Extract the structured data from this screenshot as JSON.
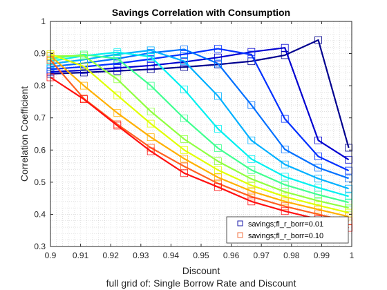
{
  "chart_data": {
    "type": "line",
    "title": "Savings Correlation with Consumption",
    "xlabel": "Discount",
    "ylabel": "Correlation Coefficient",
    "subtitle": "full grid of: Single Borrow Rate and Discount",
    "xlim": [
      0.9,
      1.0
    ],
    "ylim": [
      0.3,
      1.0
    ],
    "x_ticks": [
      "0.9",
      "0.91",
      "0.92",
      "0.93",
      "0.94",
      "0.95",
      "0.96",
      "0.97",
      "0.98",
      "0.99",
      "1"
    ],
    "y_ticks": [
      "0.3",
      "0.4",
      "0.5",
      "0.6",
      "0.7",
      "0.8",
      "0.9",
      "1"
    ],
    "grid": "minor dotted",
    "legend_position": "bottom-right",
    "legend": [
      {
        "label": "savings;fl_r_borr=0.01",
        "color": "#1a1aa8"
      },
      {
        "label": "savings;fl_r_borr=0.10",
        "color": "#f07040"
      }
    ],
    "marker_x": [
      0.9,
      0.9111,
      0.9222,
      0.9333,
      0.9444,
      0.9556,
      0.9667,
      0.9778,
      0.9889,
      0.999
    ],
    "series": [
      {
        "color": "#00008f",
        "values": [
          0.837,
          0.841,
          0.846,
          0.851,
          0.858,
          0.866,
          0.876,
          0.895,
          0.942,
          0.607
        ]
      },
      {
        "color": "#0000d0",
        "values": [
          0.843,
          0.848,
          0.855,
          0.863,
          0.874,
          0.888,
          0.905,
          0.918,
          0.63,
          0.57
        ]
      },
      {
        "color": "#0030ff",
        "values": [
          0.851,
          0.859,
          0.869,
          0.883,
          0.898,
          0.915,
          0.897,
          0.697,
          0.58,
          0.536
        ]
      },
      {
        "color": "#0070ff",
        "values": [
          0.859,
          0.87,
          0.884,
          0.902,
          0.913,
          0.869,
          0.74,
          0.602,
          0.545,
          0.512
        ]
      },
      {
        "color": "#00b0ff",
        "values": [
          0.868,
          0.881,
          0.898,
          0.91,
          0.876,
          0.768,
          0.63,
          0.555,
          0.511,
          0.48
        ]
      },
      {
        "color": "#00f0f0",
        "values": [
          0.876,
          0.893,
          0.904,
          0.89,
          0.788,
          0.666,
          0.572,
          0.517,
          0.483,
          0.456
        ]
      },
      {
        "color": "#40ff90",
        "values": [
          0.884,
          0.897,
          0.884,
          0.8,
          0.698,
          0.606,
          0.538,
          0.492,
          0.461,
          0.437
        ]
      },
      {
        "color": "#90ff40",
        "values": [
          0.892,
          0.893,
          0.82,
          0.72,
          0.634,
          0.565,
          0.51,
          0.47,
          0.442,
          0.42
        ]
      },
      {
        "color": "#e0ff00",
        "values": [
          0.898,
          0.86,
          0.77,
          0.682,
          0.6,
          0.538,
          0.49,
          0.455,
          0.428,
          0.405
        ]
      },
      {
        "color": "#ffb000",
        "values": [
          0.893,
          0.8,
          0.715,
          0.64,
          0.573,
          0.515,
          0.472,
          0.44,
          0.415,
          0.393
        ]
      },
      {
        "color": "#ff6020",
        "values": [
          0.88,
          0.76,
          0.68,
          0.607,
          0.549,
          0.496,
          0.455,
          0.425,
          0.4,
          0.378
        ]
      },
      {
        "color": "#ff1010",
        "values": [
          0.826,
          0.758,
          0.676,
          0.596,
          0.528,
          0.485,
          0.44,
          0.41,
          0.385,
          0.358
        ]
      }
    ]
  }
}
